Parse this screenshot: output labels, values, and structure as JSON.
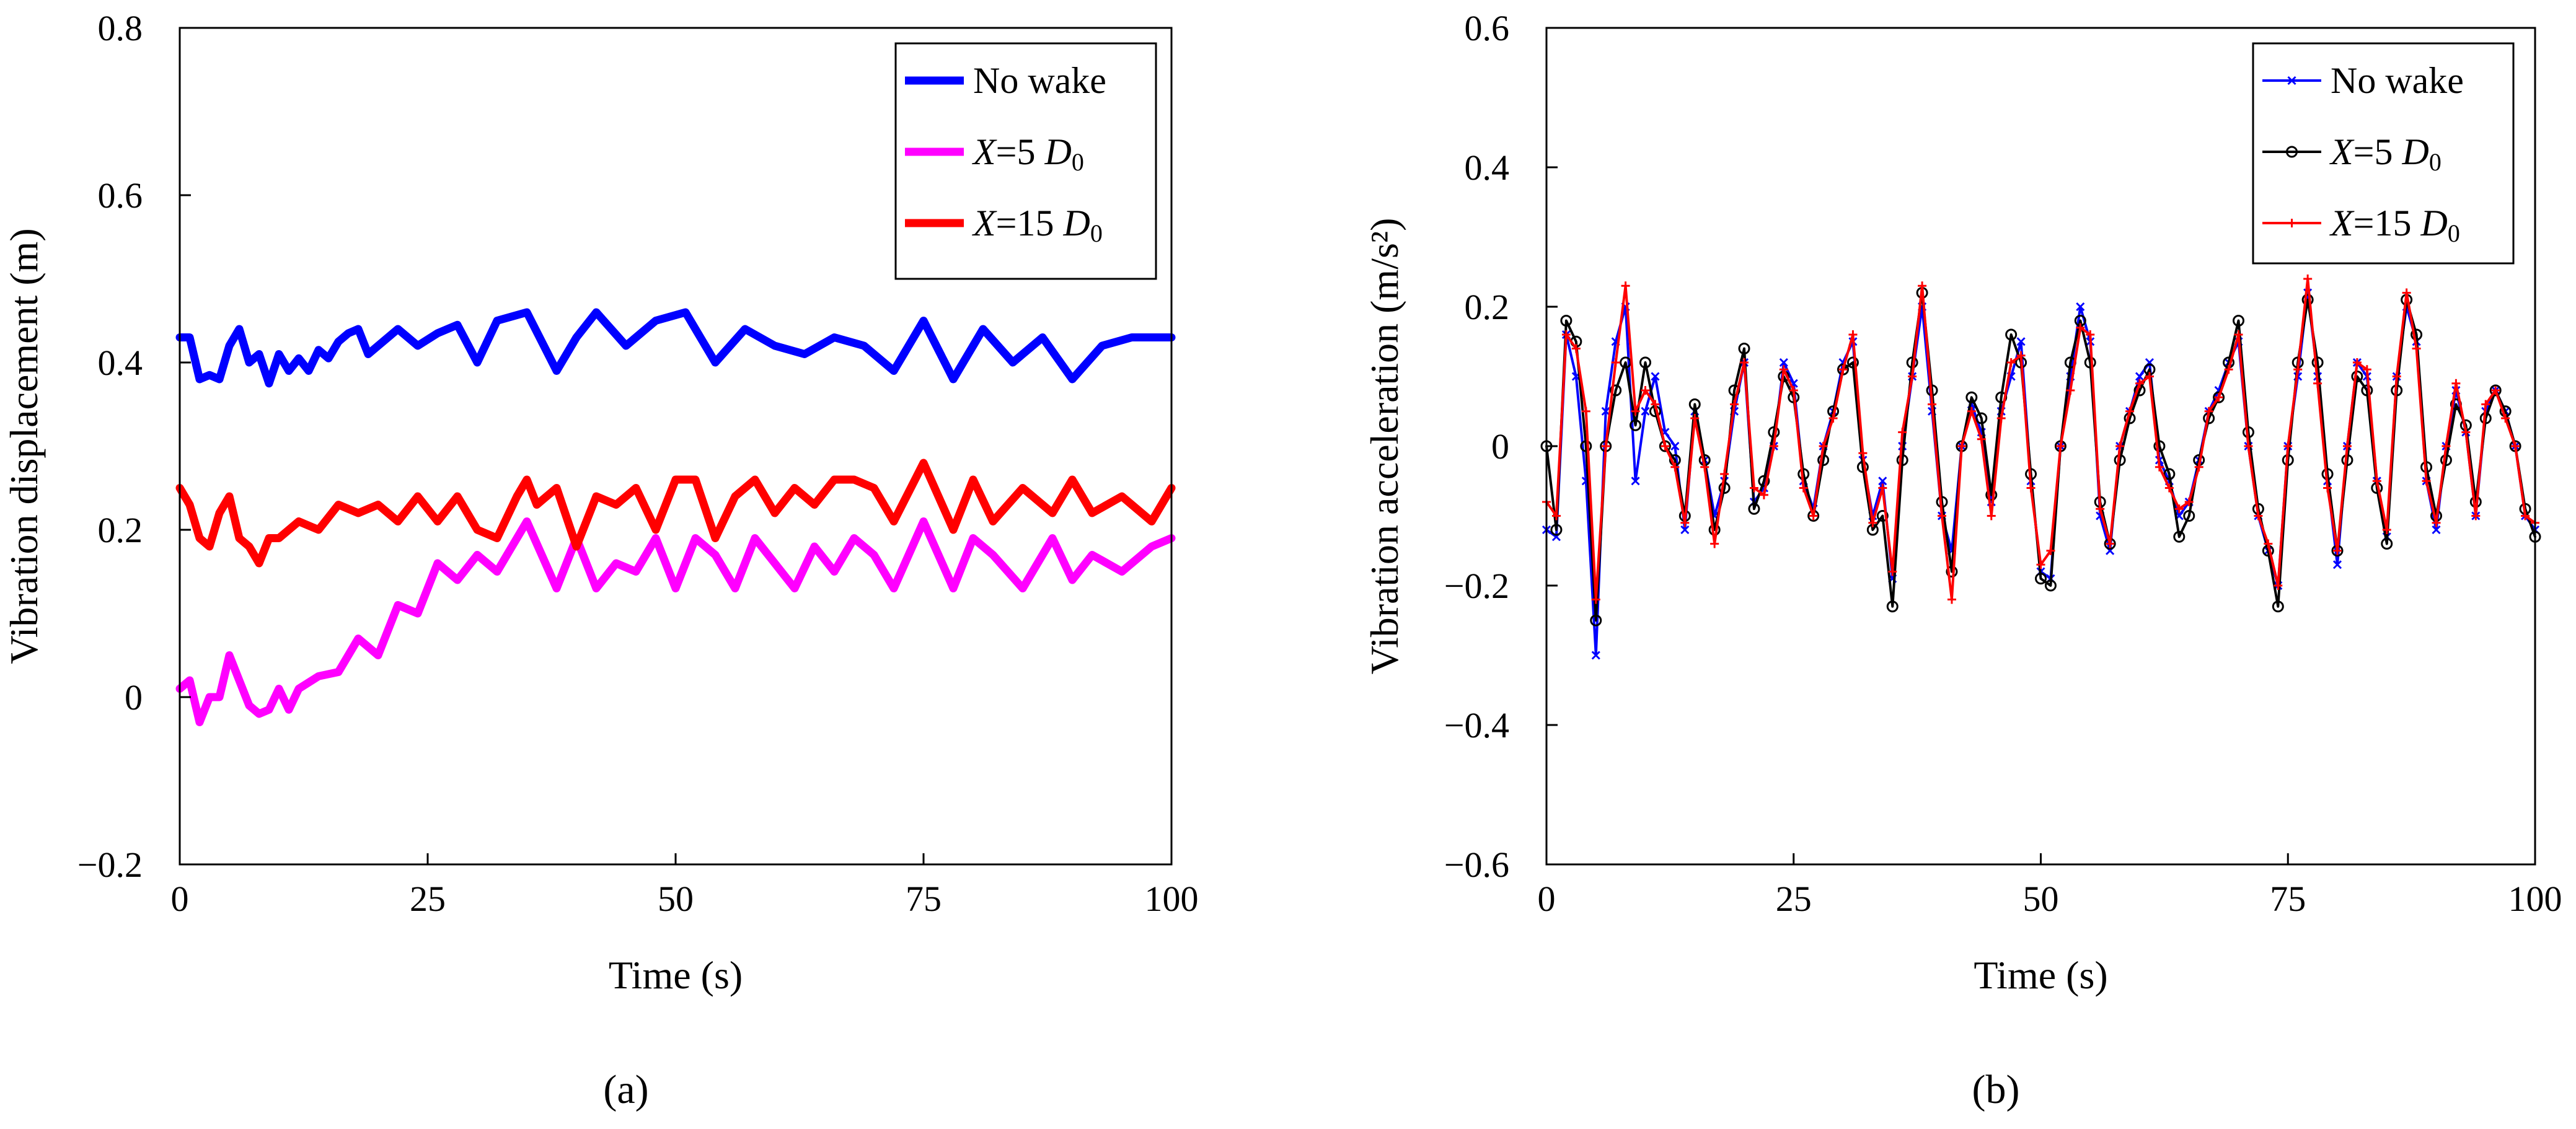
{
  "figure": {
    "panel_labels": [
      "(a)",
      "(b)"
    ]
  },
  "chart_data": [
    {
      "type": "line",
      "panel": "(a)",
      "xlabel": "Time (s)",
      "ylabel": "Vibration displacement (m)",
      "xlim": [
        0,
        100
      ],
      "ylim": [
        -0.2,
        0.8
      ],
      "xticks": [
        0,
        25,
        50,
        75,
        100
      ],
      "xtick_labels": [
        "0",
        "25",
        "50",
        "75",
        "100"
      ],
      "yticks": [
        -0.2,
        0,
        0.2,
        0.4,
        0.6,
        0.8
      ],
      "ytick_labels": [
        "−0.2",
        "0",
        "0.2",
        "0.4",
        "0.6",
        "0.8"
      ],
      "grid": false,
      "legend_position": "top-right",
      "series": [
        {
          "name": "No wake",
          "legend_prefix": "No wake",
          "legend_italic": "",
          "legend_sub": "",
          "color": "#0000ff",
          "x": [
            0,
            1,
            2,
            3,
            4,
            5,
            6,
            7,
            8,
            9,
            10,
            11,
            12,
            13,
            14,
            15,
            16,
            17,
            18,
            19,
            20,
            22,
            24,
            26,
            28,
            30,
            32,
            35,
            38,
            40,
            42,
            45,
            48,
            51,
            54,
            57,
            60,
            63,
            66,
            69,
            72,
            75,
            78,
            81,
            84,
            87,
            90,
            93,
            96,
            100
          ],
          "y": [
            0.43,
            0.43,
            0.38,
            0.385,
            0.38,
            0.42,
            0.44,
            0.4,
            0.41,
            0.375,
            0.41,
            0.39,
            0.405,
            0.39,
            0.415,
            0.405,
            0.425,
            0.435,
            0.44,
            0.41,
            0.42,
            0.44,
            0.42,
            0.435,
            0.445,
            0.4,
            0.45,
            0.46,
            0.39,
            0.43,
            0.46,
            0.42,
            0.45,
            0.46,
            0.4,
            0.44,
            0.42,
            0.41,
            0.43,
            0.42,
            0.39,
            0.45,
            0.38,
            0.44,
            0.4,
            0.43,
            0.38,
            0.42,
            0.43,
            0.43
          ]
        },
        {
          "name": "X=5 D0",
          "legend_prefix": "",
          "legend_italic": "X",
          "legend_mid": "=5 ",
          "legend_italic2": "D",
          "legend_sub": "0",
          "color": "#ff00ff",
          "x": [
            0,
            1,
            2,
            3,
            4,
            5,
            6,
            7,
            8,
            9,
            10,
            11,
            12,
            14,
            16,
            18,
            20,
            22,
            24,
            26,
            28,
            30,
            32,
            35,
            38,
            40,
            42,
            44,
            46,
            48,
            50,
            52,
            54,
            56,
            58,
            60,
            62,
            64,
            66,
            68,
            70,
            72,
            75,
            78,
            80,
            82,
            85,
            88,
            90,
            92,
            95,
            98,
            100
          ],
          "y": [
            0.01,
            0.02,
            -0.03,
            0.0,
            0.0,
            0.05,
            0.02,
            -0.01,
            -0.02,
            -0.015,
            0.01,
            -0.015,
            0.01,
            0.025,
            0.03,
            0.07,
            0.05,
            0.11,
            0.1,
            0.16,
            0.14,
            0.17,
            0.15,
            0.21,
            0.13,
            0.19,
            0.13,
            0.16,
            0.15,
            0.19,
            0.13,
            0.19,
            0.17,
            0.13,
            0.19,
            0.16,
            0.13,
            0.18,
            0.15,
            0.19,
            0.17,
            0.13,
            0.21,
            0.13,
            0.19,
            0.17,
            0.13,
            0.19,
            0.14,
            0.17,
            0.15,
            0.18,
            0.19
          ]
        },
        {
          "name": "X=15 D0",
          "legend_prefix": "",
          "legend_italic": "X",
          "legend_mid": "=15 ",
          "legend_italic2": "D",
          "legend_sub": "0",
          "color": "#ff0000",
          "x": [
            0,
            1,
            2,
            3,
            4,
            5,
            6,
            7,
            8,
            9,
            10,
            12,
            14,
            16,
            18,
            20,
            22,
            24,
            26,
            28,
            30,
            32,
            34,
            35,
            36,
            38,
            40,
            42,
            44,
            46,
            48,
            50,
            52,
            54,
            56,
            58,
            60,
            62,
            64,
            66,
            68,
            70,
            72,
            75,
            78,
            80,
            82,
            85,
            88,
            90,
            92,
            95,
            98,
            100
          ],
          "y": [
            0.25,
            0.23,
            0.19,
            0.18,
            0.22,
            0.24,
            0.19,
            0.18,
            0.16,
            0.19,
            0.19,
            0.21,
            0.2,
            0.23,
            0.22,
            0.23,
            0.21,
            0.24,
            0.21,
            0.24,
            0.2,
            0.19,
            0.24,
            0.26,
            0.23,
            0.25,
            0.18,
            0.24,
            0.23,
            0.25,
            0.2,
            0.26,
            0.26,
            0.19,
            0.24,
            0.26,
            0.22,
            0.25,
            0.23,
            0.26,
            0.26,
            0.25,
            0.21,
            0.28,
            0.2,
            0.26,
            0.21,
            0.25,
            0.22,
            0.26,
            0.22,
            0.24,
            0.21,
            0.25
          ]
        }
      ]
    },
    {
      "type": "line",
      "panel": "(b)",
      "xlabel": "Time (s)",
      "ylabel": "Vibration acceleration (m/s²)",
      "xlim": [
        0,
        100
      ],
      "ylim": [
        -0.6,
        0.6
      ],
      "xticks": [
        0,
        25,
        50,
        75,
        100
      ],
      "xtick_labels": [
        "0",
        "25",
        "50",
        "75",
        "100"
      ],
      "yticks": [
        -0.6,
        -0.4,
        -0.2,
        0,
        0.2,
        0.4,
        0.6
      ],
      "ytick_labels": [
        "−0.6",
        "−0.4",
        "−0.2",
        "0",
        "0.2",
        "0.4",
        "0.6"
      ],
      "grid": false,
      "legend_position": "top-right",
      "series": [
        {
          "name": "No wake",
          "legend_prefix": "No wake",
          "legend_italic": "",
          "legend_sub": "",
          "color": "#0000ff",
          "marker": "x",
          "x": [
            0,
            1,
            2,
            3,
            4,
            5,
            6,
            7,
            8,
            9,
            10,
            11,
            12,
            13,
            14,
            15,
            16,
            17,
            18,
            19,
            20,
            21,
            22,
            23,
            24,
            25,
            26,
            27,
            28,
            29,
            30,
            31,
            32,
            33,
            34,
            35,
            36,
            37,
            38,
            39,
            40,
            41,
            42,
            43,
            44,
            45,
            46,
            47,
            48,
            49,
            50,
            51,
            52,
            53,
            54,
            55,
            56,
            57,
            58,
            59,
            60,
            61,
            62,
            63,
            64,
            65,
            66,
            67,
            68,
            69,
            70,
            71,
            72,
            73,
            74,
            75,
            76,
            77,
            78,
            79,
            80,
            81,
            82,
            83,
            84,
            85,
            86,
            87,
            88,
            89,
            90,
            91,
            92,
            93,
            94,
            95,
            96,
            97,
            98,
            99,
            100
          ],
          "y": [
            -0.12,
            -0.13,
            0.16,
            0.1,
            -0.05,
            -0.3,
            0.05,
            0.15,
            0.2,
            -0.05,
            0.05,
            0.1,
            0.02,
            0.0,
            -0.12,
            0.05,
            -0.02,
            -0.1,
            -0.05,
            0.05,
            0.12,
            -0.08,
            -0.06,
            0.0,
            0.12,
            0.09,
            -0.05,
            -0.09,
            0.0,
            0.05,
            0.12,
            0.15,
            -0.02,
            -0.1,
            -0.05,
            -0.19,
            0.0,
            0.1,
            0.2,
            0.05,
            -0.1,
            -0.15,
            0.0,
            0.06,
            0.02,
            -0.08,
            0.05,
            0.1,
            0.15,
            -0.05,
            -0.18,
            -0.19,
            0.0,
            0.1,
            0.2,
            0.15,
            -0.1,
            -0.15,
            0.0,
            0.05,
            0.1,
            0.12,
            -0.02,
            -0.05,
            -0.1,
            -0.08,
            -0.02,
            0.05,
            0.08,
            0.12,
            0.15,
            0.0,
            -0.1,
            -0.15,
            -0.2,
            0.0,
            0.1,
            0.22,
            0.1,
            -0.05,
            -0.17,
            0.0,
            0.12,
            0.1,
            -0.05,
            -0.13,
            0.1,
            0.2,
            0.15,
            -0.05,
            -0.12,
            0.0,
            0.08,
            0.02,
            -0.1,
            0.05,
            0.08,
            0.05,
            0.0,
            -0.1,
            -0.12
          ]
        },
        {
          "name": "X=5 D0",
          "legend_prefix": "",
          "legend_italic": "X",
          "legend_mid": "=5 ",
          "legend_italic2": "D",
          "legend_sub": "0",
          "color": "#000000",
          "marker": "o",
          "x": [
            0,
            1,
            2,
            3,
            4,
            5,
            6,
            7,
            8,
            9,
            10,
            11,
            12,
            13,
            14,
            15,
            16,
            17,
            18,
            19,
            20,
            21,
            22,
            23,
            24,
            25,
            26,
            27,
            28,
            29,
            30,
            31,
            32,
            33,
            34,
            35,
            36,
            37,
            38,
            39,
            40,
            41,
            42,
            43,
            44,
            45,
            46,
            47,
            48,
            49,
            50,
            51,
            52,
            53,
            54,
            55,
            56,
            57,
            58,
            59,
            60,
            61,
            62,
            63,
            64,
            65,
            66,
            67,
            68,
            69,
            70,
            71,
            72,
            73,
            74,
            75,
            76,
            77,
            78,
            79,
            80,
            81,
            82,
            83,
            84,
            85,
            86,
            87,
            88,
            89,
            90,
            91,
            92,
            93,
            94,
            95,
            96,
            97,
            98,
            99,
            100
          ],
          "y": [
            0.0,
            -0.12,
            0.18,
            0.15,
            0.0,
            -0.25,
            0.0,
            0.08,
            0.12,
            0.03,
            0.12,
            0.05,
            0.0,
            -0.02,
            -0.1,
            0.06,
            -0.02,
            -0.12,
            -0.06,
            0.08,
            0.14,
            -0.09,
            -0.05,
            0.02,
            0.1,
            0.07,
            -0.04,
            -0.1,
            -0.02,
            0.05,
            0.11,
            0.12,
            -0.03,
            -0.12,
            -0.1,
            -0.23,
            -0.02,
            0.12,
            0.22,
            0.08,
            -0.08,
            -0.18,
            0.0,
            0.07,
            0.04,
            -0.07,
            0.07,
            0.16,
            0.12,
            -0.04,
            -0.19,
            -0.2,
            0.0,
            0.12,
            0.18,
            0.12,
            -0.08,
            -0.14,
            -0.02,
            0.04,
            0.08,
            0.11,
            0.0,
            -0.04,
            -0.13,
            -0.1,
            -0.02,
            0.04,
            0.07,
            0.12,
            0.18,
            0.02,
            -0.09,
            -0.15,
            -0.23,
            -0.02,
            0.12,
            0.21,
            0.12,
            -0.04,
            -0.15,
            -0.02,
            0.1,
            0.08,
            -0.06,
            -0.14,
            0.08,
            0.21,
            0.16,
            -0.03,
            -0.1,
            -0.02,
            0.06,
            0.03,
            -0.08,
            0.04,
            0.08,
            0.05,
            0.0,
            -0.09,
            -0.13
          ]
        },
        {
          "name": "X=15 D0",
          "legend_prefix": "",
          "legend_italic": "X",
          "legend_mid": "=15 ",
          "legend_italic2": "D",
          "legend_sub": "0",
          "color": "#ff0000",
          "marker": "+",
          "x": [
            0,
            1,
            2,
            3,
            4,
            5,
            6,
            7,
            8,
            9,
            10,
            11,
            12,
            13,
            14,
            15,
            16,
            17,
            18,
            19,
            20,
            21,
            22,
            23,
            24,
            25,
            26,
            27,
            28,
            29,
            30,
            31,
            32,
            33,
            34,
            35,
            36,
            37,
            38,
            39,
            40,
            41,
            42,
            43,
            44,
            45,
            46,
            47,
            48,
            49,
            50,
            51,
            52,
            53,
            54,
            55,
            56,
            57,
            58,
            59,
            60,
            61,
            62,
            63,
            64,
            65,
            66,
            67,
            68,
            69,
            70,
            71,
            72,
            73,
            74,
            75,
            76,
            77,
            78,
            79,
            80,
            81,
            82,
            83,
            84,
            85,
            86,
            87,
            88,
            89,
            90,
            91,
            92,
            93,
            94,
            95,
            96,
            97,
            98,
            99,
            100
          ],
          "y": [
            -0.08,
            -0.1,
            0.16,
            0.14,
            0.05,
            -0.22,
            0.0,
            0.12,
            0.23,
            0.05,
            0.08,
            0.06,
            0.0,
            -0.03,
            -0.11,
            0.04,
            -0.03,
            -0.14,
            -0.04,
            0.06,
            0.12,
            -0.06,
            -0.07,
            0.0,
            0.11,
            0.08,
            -0.06,
            -0.1,
            0.0,
            0.04,
            0.11,
            0.16,
            -0.01,
            -0.11,
            -0.06,
            -0.18,
            0.02,
            0.1,
            0.23,
            0.06,
            -0.1,
            -0.22,
            0.0,
            0.05,
            0.01,
            -0.1,
            0.04,
            0.12,
            0.13,
            -0.06,
            -0.17,
            -0.15,
            0.0,
            0.08,
            0.17,
            0.16,
            -0.09,
            -0.14,
            0.0,
            0.05,
            0.09,
            0.1,
            -0.03,
            -0.06,
            -0.09,
            -0.08,
            -0.03,
            0.05,
            0.07,
            0.11,
            0.16,
            0.0,
            -0.1,
            -0.14,
            -0.2,
            0.0,
            0.11,
            0.24,
            0.09,
            -0.06,
            -0.15,
            0.0,
            0.12,
            0.11,
            -0.05,
            -0.12,
            0.1,
            0.22,
            0.14,
            -0.05,
            -0.11,
            0.0,
            0.09,
            0.02,
            -0.1,
            0.06,
            0.08,
            0.04,
            0.0,
            -0.1,
            -0.11
          ]
        }
      ]
    }
  ]
}
